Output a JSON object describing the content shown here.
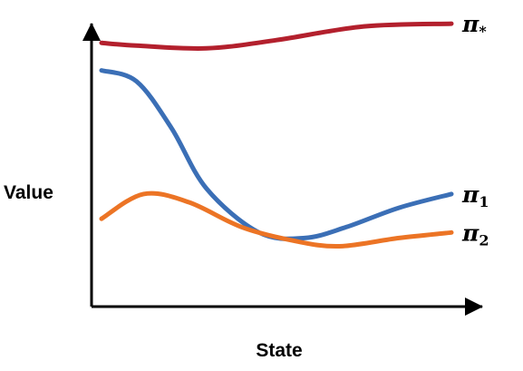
{
  "chart_data": {
    "type": "line",
    "xlabel": "State",
    "ylabel": "Value",
    "grid": false,
    "legend": "inline-right",
    "series": [
      {
        "name": "π*",
        "label_main": "π",
        "label_sub": "*",
        "color": "#b3202d",
        "x": [
          0.0,
          0.1,
          0.3,
          0.5,
          0.75,
          1.0
        ],
        "y": [
          0.91,
          0.9,
          0.89,
          0.92,
          0.97,
          0.98
        ]
      },
      {
        "name": "π1",
        "label_main": "π",
        "label_sub": "1",
        "color": "#3b6fb6",
        "x": [
          0.0,
          0.1,
          0.2,
          0.3,
          0.45,
          0.58,
          0.7,
          0.85,
          1.0
        ],
        "y": [
          0.81,
          0.77,
          0.6,
          0.38,
          0.22,
          0.2,
          0.24,
          0.31,
          0.36
        ]
      },
      {
        "name": "π2",
        "label_main": "π",
        "label_sub": "2",
        "color": "#ec7425",
        "x": [
          0.0,
          0.12,
          0.25,
          0.4,
          0.55,
          0.68,
          0.85,
          1.0
        ],
        "y": [
          0.27,
          0.36,
          0.33,
          0.24,
          0.19,
          0.17,
          0.2,
          0.22
        ]
      }
    ]
  }
}
